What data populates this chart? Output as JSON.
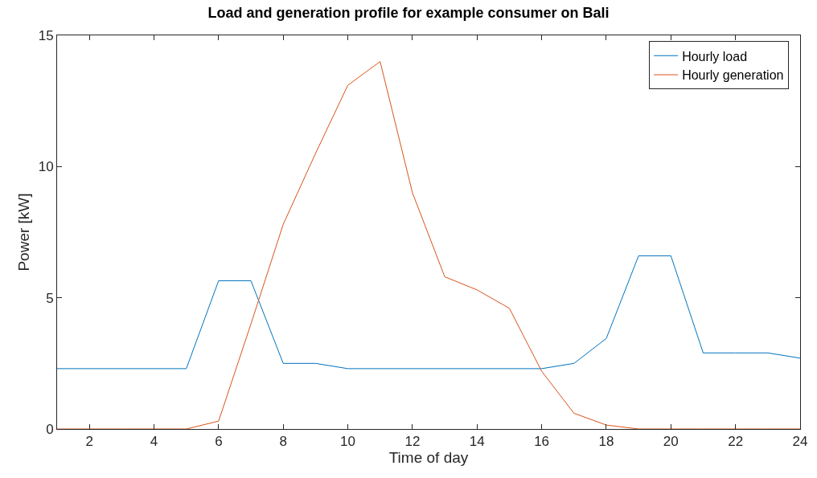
{
  "chart_data": {
    "type": "line",
    "title": "Load and generation profile for example consumer on Bali",
    "xlabel": "Time of day",
    "ylabel": "Power [kW]",
    "x": [
      1,
      2,
      3,
      4,
      5,
      6,
      7,
      8,
      9,
      10,
      11,
      12,
      13,
      14,
      15,
      16,
      17,
      18,
      19,
      20,
      21,
      22,
      23,
      24
    ],
    "series": [
      {
        "name": "Hourly load",
        "color": "#0072bd",
        "values": [
          2.3,
          2.3,
          2.3,
          2.3,
          2.3,
          5.65,
          5.65,
          2.5,
          2.5,
          2.3,
          2.3,
          2.3,
          2.3,
          2.3,
          2.3,
          2.3,
          2.5,
          3.45,
          6.6,
          6.6,
          2.9,
          2.9,
          2.9,
          2.7
        ]
      },
      {
        "name": "Hourly generation",
        "color": "#d95319",
        "values": [
          0,
          0,
          0,
          0,
          0,
          0.3,
          4.0,
          7.8,
          10.5,
          13.1,
          14.0,
          9.0,
          5.8,
          5.3,
          4.6,
          2.2,
          0.6,
          0.15,
          0,
          0,
          0,
          0,
          0,
          0
        ]
      }
    ],
    "xlim": [
      1,
      24
    ],
    "xticks": [
      2,
      4,
      6,
      8,
      10,
      12,
      14,
      16,
      18,
      20,
      22,
      24
    ],
    "ylim": [
      0,
      15
    ],
    "yticks": [
      0,
      5,
      10,
      15
    ],
    "legend": "top right",
    "marker": "none",
    "line_style": "solid"
  }
}
